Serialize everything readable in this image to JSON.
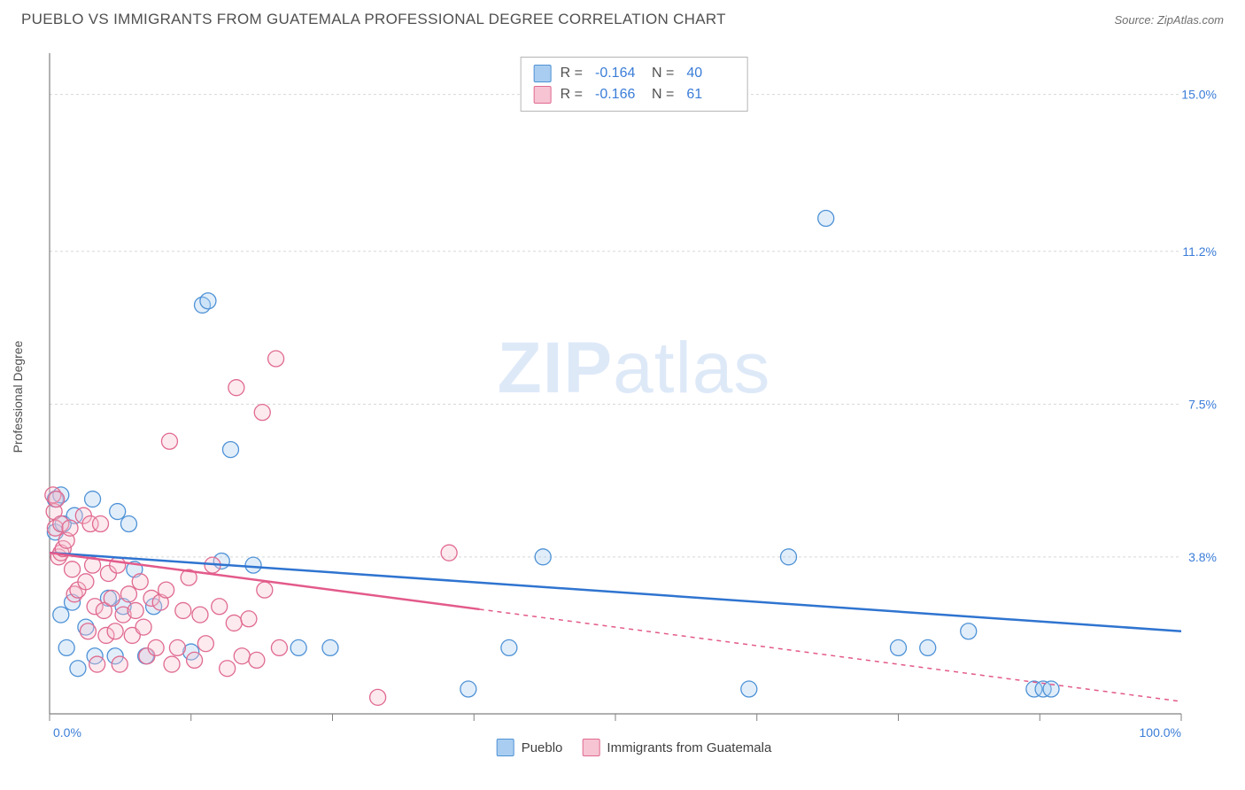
{
  "title": "PUEBLO VS IMMIGRANTS FROM GUATEMALA PROFESSIONAL DEGREE CORRELATION CHART",
  "source": "Source: ZipAtlas.com",
  "y_axis_label": "Professional Degree",
  "watermark_bold": "ZIP",
  "watermark_rest": "atlas",
  "chart": {
    "type": "scatter",
    "xlim": [
      0,
      100
    ],
    "ylim": [
      0,
      16
    ],
    "x_tick_positions": [
      0,
      12.5,
      25,
      37.5,
      50,
      62.5,
      75,
      87.5,
      100
    ],
    "x_tick_labels_shown": {
      "0": "0.0%",
      "100": "100.0%"
    },
    "y_grid": [
      3.8,
      7.5,
      11.2,
      15.0
    ],
    "y_tick_labels": [
      "3.8%",
      "7.5%",
      "11.2%",
      "15.0%"
    ],
    "background_color": "#ffffff",
    "grid_color": "#d8d8d8",
    "axis_color": "#808080",
    "tick_label_color": "#3b7dd8",
    "marker_radius": 9,
    "series": [
      {
        "name": "Pueblo",
        "label": "Pueblo",
        "color_fill": "#a9cdf0",
        "color_stroke": "#4f92d6",
        "R": "-0.164",
        "N": "40",
        "trend": {
          "x1": 0,
          "y1": 3.9,
          "x2": 100,
          "y2": 2.0,
          "solid_until_x": 100,
          "color": "#2f74d0"
        },
        "points": [
          [
            0.5,
            4.4
          ],
          [
            0.5,
            5.2
          ],
          [
            1.0,
            5.3
          ],
          [
            1.2,
            4.6
          ],
          [
            1.0,
            2.4
          ],
          [
            1.5,
            1.6
          ],
          [
            2.0,
            2.7
          ],
          [
            2.2,
            4.8
          ],
          [
            2.5,
            1.1
          ],
          [
            3.2,
            2.1
          ],
          [
            3.8,
            5.2
          ],
          [
            4.0,
            1.4
          ],
          [
            5.2,
            2.8
          ],
          [
            5.8,
            1.4
          ],
          [
            6.0,
            4.9
          ],
          [
            6.5,
            2.6
          ],
          [
            7.0,
            4.6
          ],
          [
            7.5,
            3.5
          ],
          [
            8.5,
            1.4
          ],
          [
            9.2,
            2.6
          ],
          [
            12.5,
            1.5
          ],
          [
            13.5,
            9.9
          ],
          [
            14.0,
            10.0
          ],
          [
            15.2,
            3.7
          ],
          [
            16.0,
            6.4
          ],
          [
            18.0,
            3.6
          ],
          [
            22.0,
            1.6
          ],
          [
            24.8,
            1.6
          ],
          [
            37.0,
            0.6
          ],
          [
            43.6,
            3.8
          ],
          [
            40.6,
            1.6
          ],
          [
            61.8,
            0.6
          ],
          [
            65.3,
            3.8
          ],
          [
            68.6,
            12.0
          ],
          [
            75.0,
            1.6
          ],
          [
            77.6,
            1.6
          ],
          [
            81.2,
            2.0
          ],
          [
            87.0,
            0.6
          ],
          [
            87.8,
            0.6
          ],
          [
            88.5,
            0.6
          ]
        ]
      },
      {
        "name": "Immigrants from Guatemala",
        "label": "Immigrants from Guatemala",
        "color_fill": "#f6c4d2",
        "color_stroke": "#e06a90",
        "R": "-0.166",
        "N": "61",
        "trend": {
          "x1": 0,
          "y1": 3.9,
          "x2": 100,
          "y2": 0.3,
          "solid_until_x": 38,
          "color": "#e35a8a"
        },
        "points": [
          [
            0.3,
            5.3
          ],
          [
            0.4,
            4.9
          ],
          [
            0.5,
            4.5
          ],
          [
            0.6,
            5.2
          ],
          [
            0.8,
            3.8
          ],
          [
            1.0,
            3.9
          ],
          [
            1.0,
            4.6
          ],
          [
            1.2,
            4.0
          ],
          [
            1.5,
            4.2
          ],
          [
            1.8,
            4.5
          ],
          [
            2.0,
            3.5
          ],
          [
            2.2,
            2.9
          ],
          [
            2.5,
            3.0
          ],
          [
            3.0,
            4.8
          ],
          [
            3.2,
            3.2
          ],
          [
            3.4,
            2.0
          ],
          [
            3.6,
            4.6
          ],
          [
            3.8,
            3.6
          ],
          [
            4.0,
            2.6
          ],
          [
            4.2,
            1.2
          ],
          [
            4.5,
            4.6
          ],
          [
            4.8,
            2.5
          ],
          [
            5.0,
            1.9
          ],
          [
            5.2,
            3.4
          ],
          [
            5.5,
            2.8
          ],
          [
            5.8,
            2.0
          ],
          [
            6.0,
            3.6
          ],
          [
            6.2,
            1.2
          ],
          [
            6.5,
            2.4
          ],
          [
            7.0,
            2.9
          ],
          [
            7.3,
            1.9
          ],
          [
            7.6,
            2.5
          ],
          [
            8.0,
            3.2
          ],
          [
            8.3,
            2.1
          ],
          [
            8.6,
            1.4
          ],
          [
            9.0,
            2.8
          ],
          [
            9.4,
            1.6
          ],
          [
            9.8,
            2.7
          ],
          [
            10.3,
            3.0
          ],
          [
            10.6,
            6.6
          ],
          [
            10.8,
            1.2
          ],
          [
            11.3,
            1.6
          ],
          [
            11.8,
            2.5
          ],
          [
            12.3,
            3.3
          ],
          [
            12.8,
            1.3
          ],
          [
            13.3,
            2.4
          ],
          [
            13.8,
            1.7
          ],
          [
            14.4,
            3.6
          ],
          [
            15.0,
            2.6
          ],
          [
            15.7,
            1.1
          ],
          [
            16.3,
            2.2
          ],
          [
            16.5,
            7.9
          ],
          [
            17.0,
            1.4
          ],
          [
            17.6,
            2.3
          ],
          [
            18.3,
            1.3
          ],
          [
            18.8,
            7.3
          ],
          [
            19.0,
            3.0
          ],
          [
            20.0,
            8.6
          ],
          [
            20.3,
            1.6
          ],
          [
            29.0,
            0.4
          ],
          [
            35.3,
            3.9
          ]
        ]
      }
    ],
    "legend_bottom": [
      {
        "label": "Pueblo",
        "fill": "#a9cdf0",
        "stroke": "#4f92d6"
      },
      {
        "label": "Immigrants from Guatemala",
        "fill": "#f6c4d2",
        "stroke": "#e06a90"
      }
    ]
  }
}
